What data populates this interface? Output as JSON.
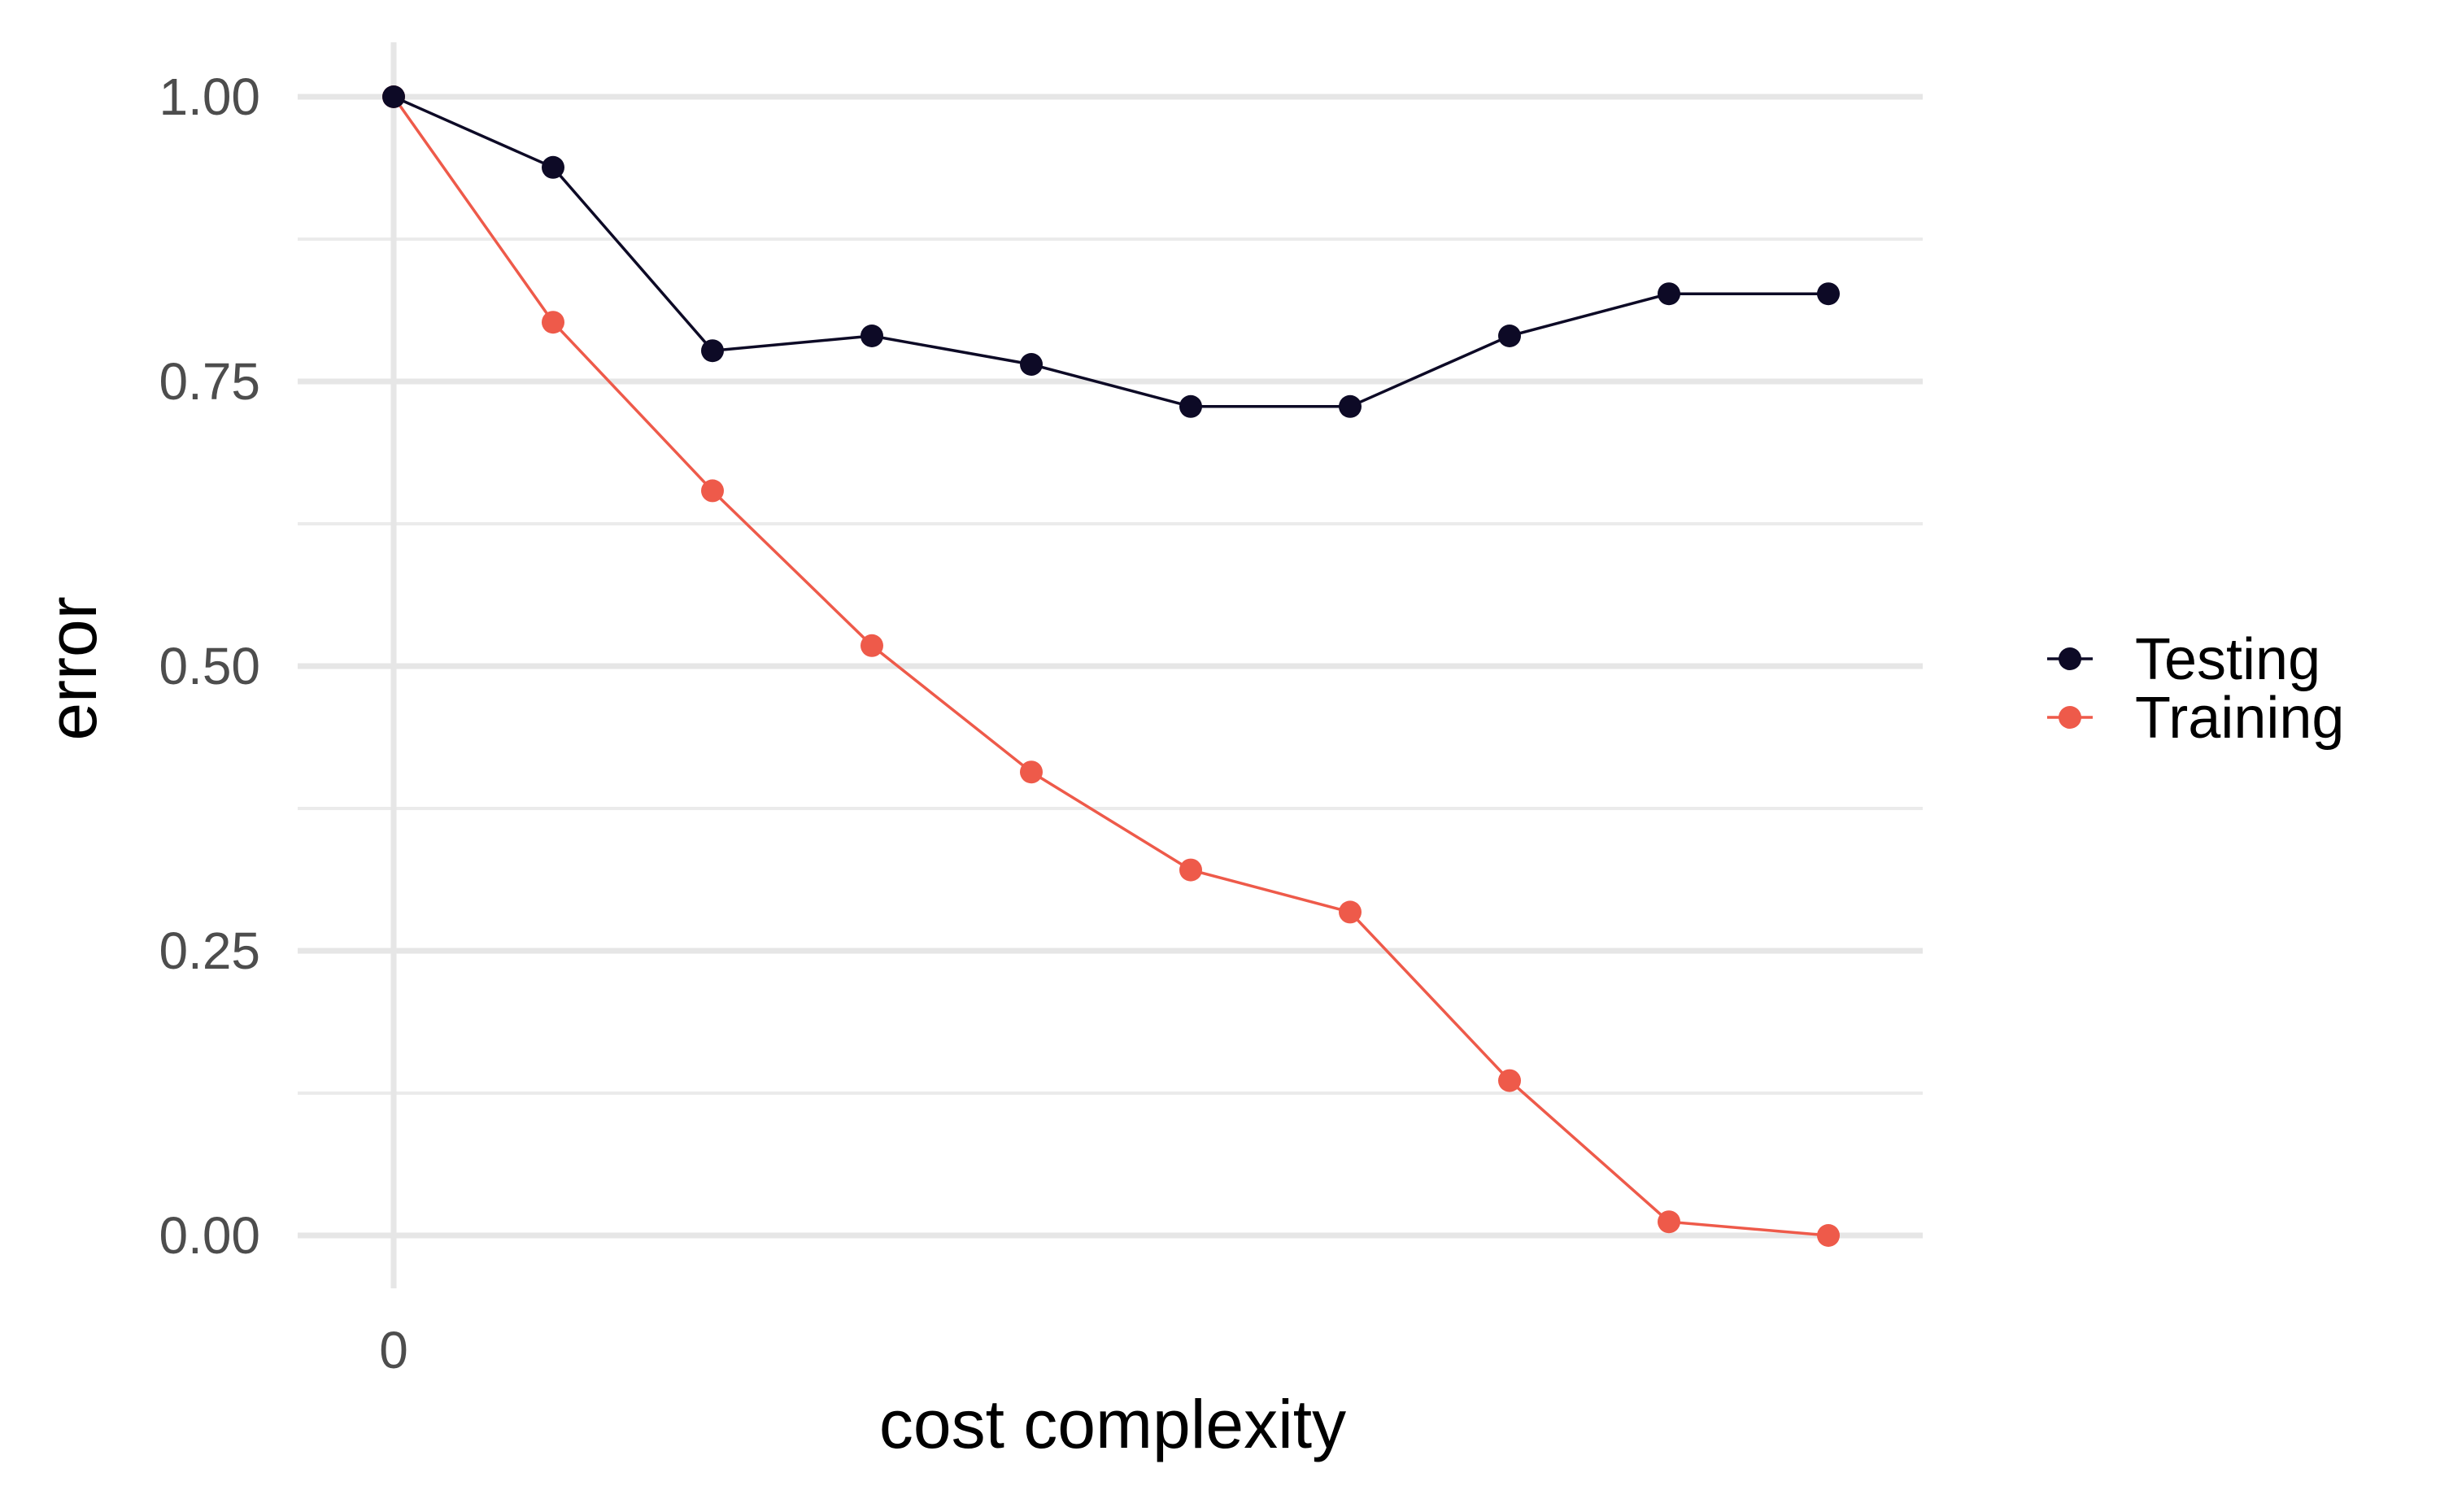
{
  "chart_data": {
    "type": "line",
    "xlabel": "cost complexity",
    "ylabel": "error",
    "x_ticks": [
      {
        "label": "0",
        "index": 0
      }
    ],
    "ylim": [
      -0.05,
      1.03
    ],
    "y_ticks": [
      0.0,
      0.25,
      0.5,
      0.75,
      1.0
    ],
    "y_tick_labels": [
      "0.00",
      "0.25",
      "0.50",
      "0.75",
      "1.00"
    ],
    "y_minor_ticks": [
      0.125,
      0.375,
      0.625,
      0.875
    ],
    "grid": true,
    "legend_position": "right",
    "series": [
      {
        "name": "Testing",
        "color": "#0d0a26",
        "values": [
          1.0,
          0.938,
          0.777,
          0.79,
          0.765,
          0.728,
          0.728,
          0.79,
          0.827,
          0.827
        ]
      },
      {
        "name": "Training",
        "color": "#ee5a4a",
        "values": [
          1.0,
          0.802,
          0.654,
          0.518,
          0.407,
          0.321,
          0.284,
          0.136,
          0.012,
          0.0
        ]
      }
    ]
  }
}
